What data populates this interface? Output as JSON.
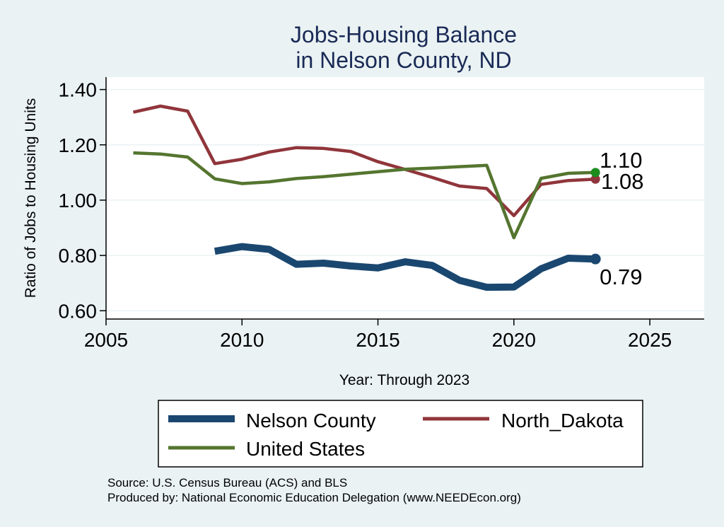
{
  "chart_data": {
    "type": "line",
    "title": [
      "Jobs-Housing Balance",
      "in Nelson County, ND"
    ],
    "xlabel": "Year: Through 2023",
    "ylabel": "Ratio of Jobs to Housing Units",
    "xlim": [
      2005,
      2027
    ],
    "ylim": [
      0.57,
      1.445
    ],
    "xticks": [
      2005,
      2010,
      2015,
      2020,
      2025
    ],
    "yticks": [
      0.6,
      0.8,
      1.0,
      1.2,
      1.4
    ],
    "ytick_labels": [
      "0.60",
      "0.80",
      "1.00",
      "1.20",
      "1.40"
    ],
    "grid": true,
    "series": [
      {
        "name": "Nelson County",
        "color": "#1a476f",
        "width": "thick",
        "x": [
          2009,
          2010,
          2011,
          2012,
          2013,
          2014,
          2015,
          2016,
          2017,
          2018,
          2019,
          2020,
          2021,
          2022,
          2023
        ],
        "y": [
          0.815,
          0.832,
          0.822,
          0.768,
          0.772,
          0.762,
          0.755,
          0.777,
          0.764,
          0.71,
          0.685,
          0.686,
          0.752,
          0.79,
          0.787
        ],
        "end_label": "0.79",
        "end_marker_color": "#1a476f"
      },
      {
        "name": "North_Dakota",
        "color": "#90353b",
        "width": "medium",
        "x": [
          2006,
          2007,
          2008,
          2009,
          2010,
          2011,
          2012,
          2013,
          2014,
          2015,
          2016,
          2017,
          2018,
          2019,
          2020,
          2021,
          2022,
          2023
        ],
        "y": [
          1.318,
          1.34,
          1.322,
          1.132,
          1.148,
          1.174,
          1.19,
          1.187,
          1.176,
          1.139,
          1.111,
          1.082,
          1.051,
          1.042,
          0.944,
          1.057,
          1.071,
          1.076
        ],
        "end_label": "1.08",
        "end_marker_color": "#90353b"
      },
      {
        "name": "United States",
        "color": "#55752f",
        "width": "medium",
        "x": [
          2006,
          2007,
          2008,
          2009,
          2010,
          2011,
          2012,
          2013,
          2014,
          2015,
          2016,
          2017,
          2018,
          2019,
          2020,
          2021,
          2022,
          2023
        ],
        "y": [
          1.171,
          1.167,
          1.156,
          1.077,
          1.06,
          1.066,
          1.078,
          1.085,
          1.094,
          1.103,
          1.112,
          1.116,
          1.121,
          1.126,
          0.864,
          1.079,
          1.097,
          1.1
        ],
        "end_label": "1.10",
        "end_marker_color": "#1d8c1d"
      }
    ],
    "legend": {
      "placement": "bottom",
      "entries": [
        "Nelson County",
        "North_Dakota",
        "United States"
      ]
    },
    "notes": [
      "Source: U.S. Census Bureau (ACS) and BLS",
      "Produced by: National Economic Education Delegation (www.NEEDEcon.org)"
    ]
  },
  "colors": {
    "background": "#eaf2f3",
    "plot_background": "#ffffff",
    "title": "#1a2a56",
    "grid": "#eaf2f3",
    "axis": "#000000"
  }
}
